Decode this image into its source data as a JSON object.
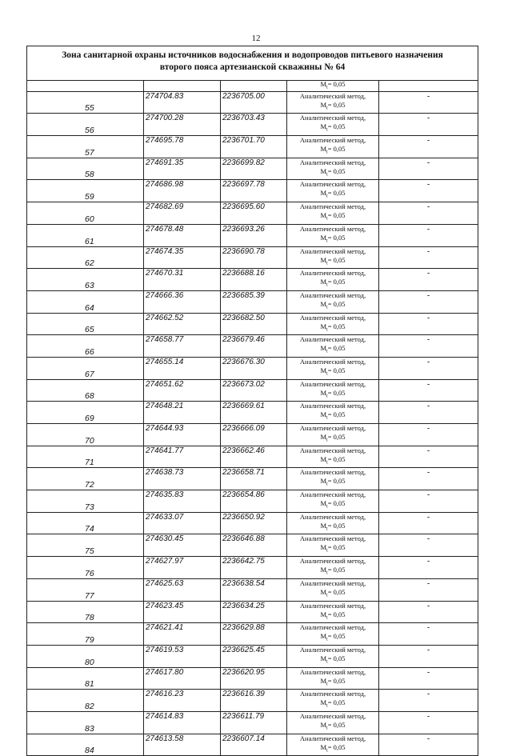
{
  "page_number": "12",
  "title_line1": "Зона санитарной охраны источников водоснабжения и водопроводов питьевого назначения",
  "title_line2": "второго пояса артезианской скважины № 64",
  "method_label": "Аналитический метод,",
  "accuracy_symbol": "M",
  "accuracy_sub": "t",
  "accuracy_value": "= 0,05",
  "dash": "-",
  "rows": [
    [
      "55",
      "274704.83",
      "2236705.00"
    ],
    [
      "56",
      "274700.28",
      "2236703.43"
    ],
    [
      "57",
      "274695.78",
      "2236701.70"
    ],
    [
      "58",
      "274691.35",
      "2236699.82"
    ],
    [
      "59",
      "274686.98",
      "2236697.78"
    ],
    [
      "60",
      "274682.69",
      "2236695.60"
    ],
    [
      "61",
      "274678.48",
      "2236693.26"
    ],
    [
      "62",
      "274674.35",
      "2236690.78"
    ],
    [
      "63",
      "274670.31",
      "2236688.16"
    ],
    [
      "64",
      "274666.36",
      "2236685.39"
    ],
    [
      "65",
      "274662.52",
      "2236682.50"
    ],
    [
      "66",
      "274658.77",
      "2236679.46"
    ],
    [
      "67",
      "274655.14",
      "2236676.30"
    ],
    [
      "68",
      "274651.62",
      "2236673.02"
    ],
    [
      "69",
      "274648.21",
      "2236669.61"
    ],
    [
      "70",
      "274644.93",
      "2236666.09"
    ],
    [
      "71",
      "274641.77",
      "2236662.46"
    ],
    [
      "72",
      "274638.73",
      "2236658.71"
    ],
    [
      "73",
      "274635.83",
      "2236654.86"
    ],
    [
      "74",
      "274633.07",
      "2236650.92"
    ],
    [
      "75",
      "274630.45",
      "2236646.88"
    ],
    [
      "76",
      "274627.97",
      "2236642.75"
    ],
    [
      "77",
      "274625.63",
      "2236638.54"
    ],
    [
      "78",
      "274623.45",
      "2236634.25"
    ],
    [
      "79",
      "274621.41",
      "2236629.88"
    ],
    [
      "80",
      "274619.53",
      "2236625.45"
    ],
    [
      "81",
      "274617.80",
      "2236620.95"
    ],
    [
      "82",
      "274616.23",
      "2236616.39"
    ],
    [
      "83",
      "274614.83",
      "2236611.79"
    ],
    [
      "84",
      "274613.58",
      "2236607.14"
    ]
  ]
}
